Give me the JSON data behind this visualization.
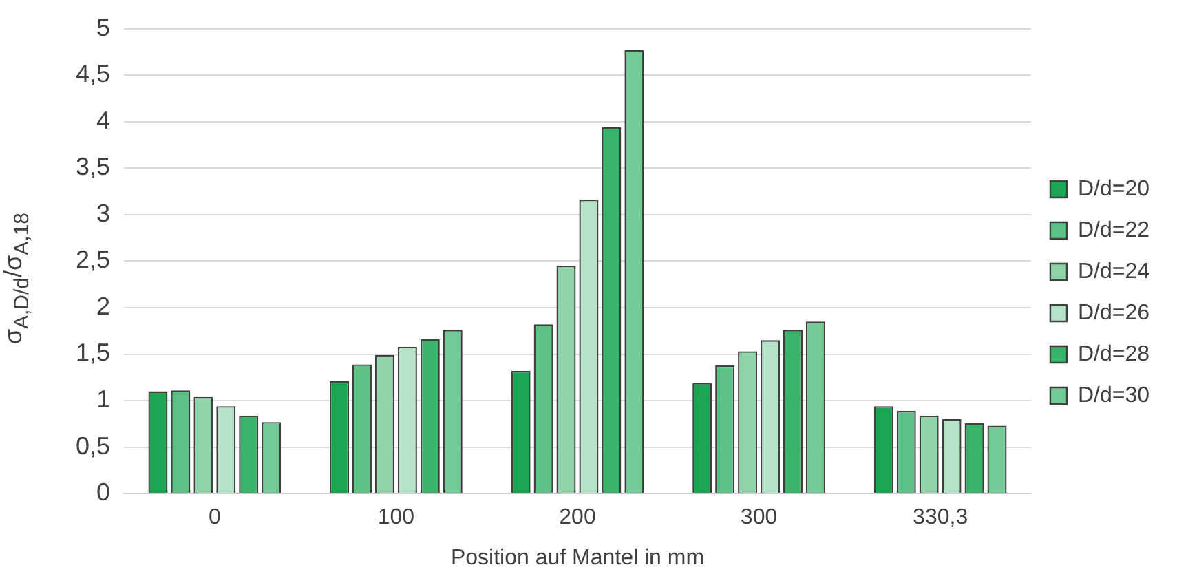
{
  "chart_data": {
    "type": "bar",
    "xlabel": "Position auf Mantel in mm",
    "ylabel": "σ$_{A,D/d}$/σ$_{A,18}$",
    "categories": [
      "0",
      "100",
      "200",
      "300",
      "330,3"
    ],
    "series": [
      {
        "name": "D/d=20",
        "color": "#1aa653",
        "values": [
          1.1,
          1.21,
          1.32,
          1.19,
          0.94
        ]
      },
      {
        "name": "D/d=22",
        "color": "#5cc185",
        "values": [
          1.11,
          1.39,
          1.82,
          1.38,
          0.89
        ]
      },
      {
        "name": "D/d=24",
        "color": "#8fd4aa",
        "values": [
          1.04,
          1.49,
          2.45,
          1.53,
          0.84
        ]
      },
      {
        "name": "D/d=26",
        "color": "#b5e3c7",
        "values": [
          0.94,
          1.58,
          3.16,
          1.65,
          0.8
        ]
      },
      {
        "name": "D/d=28",
        "color": "#3bb36b",
        "values": [
          0.84,
          1.66,
          3.94,
          1.76,
          0.76
        ]
      },
      {
        "name": "D/d=30",
        "color": "#74ca96",
        "values": [
          0.77,
          1.76,
          4.77,
          1.85,
          0.73
        ]
      }
    ],
    "ylim": [
      0,
      5
    ],
    "yticks": [
      0,
      {
        "value": 0.5,
        "label": "0,5"
      },
      1,
      {
        "value": 1.5,
        "label": "1,5"
      },
      2,
      {
        "value": 2.5,
        "label": "2,5"
      },
      3,
      {
        "value": 3.5,
        "label": "3,5"
      },
      4,
      {
        "value": 4.5,
        "label": "4,5"
      },
      5
    ],
    "grid": "y",
    "legend": "right"
  }
}
